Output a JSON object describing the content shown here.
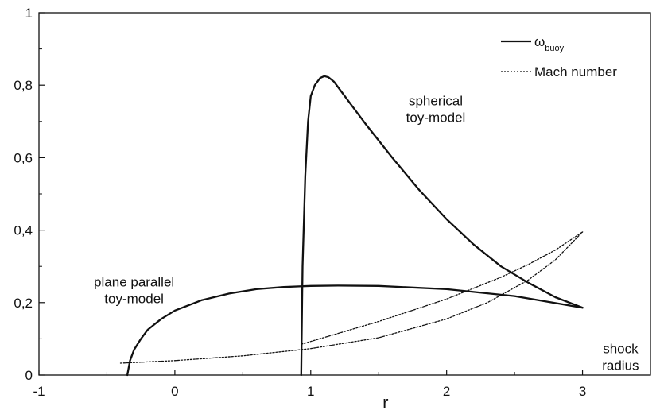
{
  "chart_data": {
    "type": "line",
    "xlabel": "r",
    "ylabel": "",
    "xlim": [
      -1,
      3.5
    ],
    "ylim": [
      0,
      1
    ],
    "x_ticks": [
      {
        "value": -1,
        "label": "-1"
      },
      {
        "value": 0,
        "label": "0"
      },
      {
        "value": 1,
        "label": "1"
      },
      {
        "value": 2,
        "label": "2"
      },
      {
        "value": 3,
        "label": "3"
      }
    ],
    "y_ticks": [
      {
        "value": 0,
        "label": "0"
      },
      {
        "value": 0.2,
        "label": "0,2"
      },
      {
        "value": 0.4,
        "label": "0,4"
      },
      {
        "value": 0.6,
        "label": "0,6"
      },
      {
        "value": 0.8,
        "label": "0,8"
      },
      {
        "value": 1,
        "label": "1"
      }
    ],
    "grid": false,
    "legend": {
      "placement": "top-right",
      "entries": [
        {
          "label_main": "ω",
          "label_sub": "buoy",
          "style": "solid"
        },
        {
          "label": "Mach number",
          "style": "dotted"
        }
      ]
    },
    "series": [
      {
        "id": "omega-plane",
        "style": "solid",
        "x": [
          -0.35,
          -0.33,
          -0.3,
          -0.25,
          -0.2,
          -0.1,
          0.0,
          0.2,
          0.4,
          0.6,
          0.8,
          1.0,
          1.2,
          1.5,
          2.0,
          2.5,
          3.0
        ],
        "y": [
          0.0,
          0.04,
          0.07,
          0.1,
          0.125,
          0.155,
          0.178,
          0.207,
          0.225,
          0.237,
          0.243,
          0.246,
          0.247,
          0.246,
          0.237,
          0.218,
          0.186
        ]
      },
      {
        "id": "omega-spherical",
        "style": "solid",
        "x": [
          0.93,
          0.94,
          0.96,
          0.98,
          1.0,
          1.03,
          1.07,
          1.1,
          1.13,
          1.17,
          1.2,
          1.3,
          1.4,
          1.6,
          1.8,
          2.0,
          2.2,
          2.4,
          2.6,
          2.8,
          3.0
        ],
        "y": [
          0.0,
          0.3,
          0.55,
          0.7,
          0.77,
          0.8,
          0.82,
          0.825,
          0.822,
          0.81,
          0.795,
          0.745,
          0.695,
          0.6,
          0.51,
          0.43,
          0.36,
          0.3,
          0.255,
          0.215,
          0.186
        ]
      },
      {
        "id": "mach-plane",
        "style": "dotted",
        "x": [
          -0.4,
          0.0,
          0.5,
          1.0,
          1.5,
          2.0,
          2.3,
          2.6,
          2.8,
          3.0
        ],
        "y": [
          0.033,
          0.04,
          0.053,
          0.073,
          0.103,
          0.155,
          0.2,
          0.262,
          0.318,
          0.395
        ]
      },
      {
        "id": "mach-spherical",
        "style": "dotted",
        "x": [
          0.93,
          1.2,
          1.5,
          1.8,
          2.0,
          2.2,
          2.4,
          2.6,
          2.8,
          3.0
        ],
        "y": [
          0.085,
          0.115,
          0.148,
          0.185,
          0.21,
          0.24,
          0.27,
          0.305,
          0.345,
          0.395
        ]
      }
    ],
    "annotations": [
      {
        "id": "spherical",
        "lines": [
          "spherical",
          "toy-model"
        ],
        "x": 1.92,
        "y": 0.745
      },
      {
        "id": "plane-parallel",
        "lines": [
          "plane parallel",
          "toy-model"
        ],
        "x": -0.3,
        "y": 0.245
      },
      {
        "id": "shock-radius",
        "lines": [
          "shock",
          "radius"
        ],
        "x": 3.28,
        "y": 0.06
      }
    ]
  }
}
